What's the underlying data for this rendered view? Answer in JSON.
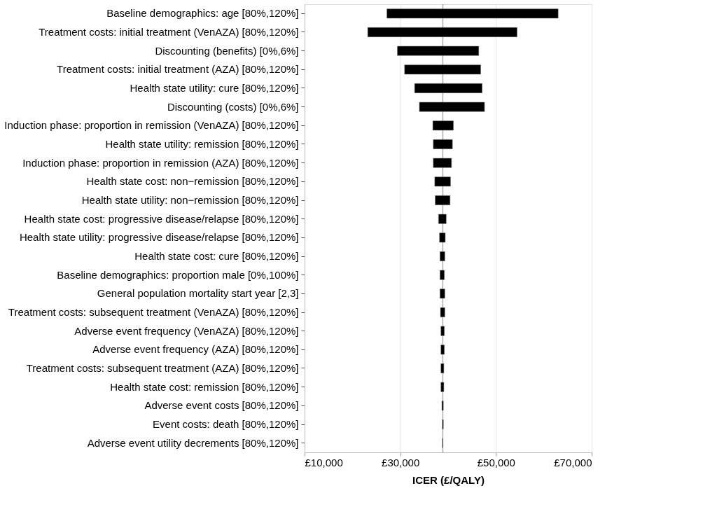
{
  "chart_data": {
    "type": "bar",
    "orientation": "horizontal",
    "xlabel": "ICER (£/QALY)",
    "categories": [
      "Baseline demographics: age [80%,120%]",
      "Treatment costs: initial treatment (VenAZA) [80%,120%]",
      "Discounting (benefits) [0%,6%]",
      "Treatment costs: initial treatment (AZA) [80%,120%]",
      "Health state utility: cure [80%,120%]",
      "Discounting (costs) [0%,6%]",
      "Induction phase: proportion in remission (VenAZA) [80%,120%]",
      "Health state utility: remission [80%,120%]",
      "Induction phase: proportion in remission (AZA) [80%,120%]",
      "Health state cost: non−remission [80%,120%]",
      "Health state utility: non−remission [80%,120%]",
      "Health state cost: progressive disease/relapse [80%,120%]",
      "Health state utility: progressive disease/relapse [80%,120%]",
      "Health state cost: cure [80%,120%]",
      "Baseline demographics: proportion male [0%,100%]",
      "General population mortality start year [2,3]",
      "Treatment costs: subsequent treatment (VenAZA) [80%,120%]",
      "Adverse event frequency (VenAZA) [80%,120%]",
      "Adverse event frequency (AZA) [80%,120%]",
      "Treatment costs: subsequent treatment (AZA) [80%,120%]",
      "Health state cost: remission [80%,120%]",
      "Adverse event costs [80%,120%]",
      "Event costs: death [80%,120%]",
      "Adverse event utility decrements [80%,120%]"
    ],
    "base": [
      27200,
      23200,
      29400,
      30900,
      33000,
      34000,
      36800,
      36900,
      36900,
      37200,
      37300,
      38000,
      38200,
      38300,
      38300,
      38300,
      38400,
      38500,
      38500,
      38500,
      38500,
      38700,
      38800,
      38800
    ],
    "values": [
      35800,
      31200,
      17000,
      15900,
      14100,
      13600,
      4300,
      4000,
      3800,
      3300,
      3100,
      1600,
      1200,
      1000,
      900,
      1000,
      900,
      700,
      700,
      600,
      600,
      300,
      200,
      100
    ],
    "color": "#000000",
    "xlim": [
      10000,
      70000
    ],
    "xticks": [
      {
        "value": 10000,
        "label": "£10,000"
      },
      {
        "value": 30000,
        "label": "£30,000"
      },
      {
        "value": 50000,
        "label": "£50,000"
      },
      {
        "value": 70000,
        "label": "£70,000"
      }
    ],
    "ref_lines": [
      {
        "axis": "x",
        "value": 38900,
        "color": "#999999"
      }
    ],
    "grid": "x"
  }
}
